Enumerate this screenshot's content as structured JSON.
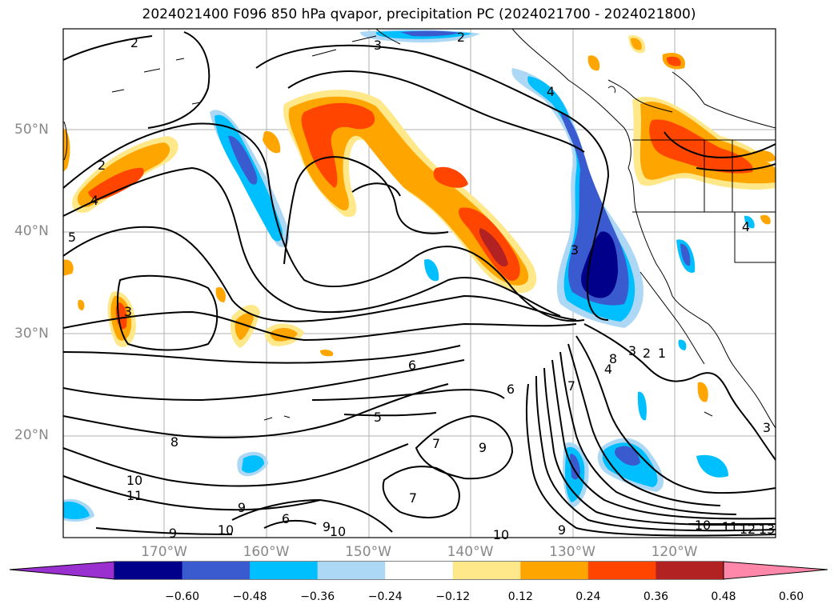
{
  "title": "2024021400 F096 850 hPa qvapor, precipitation PC (2024021700 - 2024021800)",
  "lat_labels": [
    {
      "text": "50°N",
      "lat": 50
    },
    {
      "text": "40°N",
      "lat": 40
    },
    {
      "text": "30°N",
      "lat": 30
    },
    {
      "text": "20°N",
      "lat": 20
    }
  ],
  "lon_labels": [
    {
      "text": "170°W",
      "lon": -170
    },
    {
      "text": "160°W",
      "lon": -160
    },
    {
      "text": "150°W",
      "lon": -150
    },
    {
      "text": "140°W",
      "lon": -140
    },
    {
      "text": "130°W",
      "lon": -130
    },
    {
      "text": "120°W",
      "lon": -120
    }
  ],
  "colorbar": {
    "colors": [
      "#9b30d0",
      "#00008b",
      "#3a5bd0",
      "#00bfff",
      "#add8f5",
      "#ffffff",
      "#ffe88a",
      "#ffa500",
      "#ff4500",
      "#b22222",
      "#ff88aa"
    ],
    "ticks": [
      "−0.60",
      "−0.48",
      "−0.36",
      "−0.24",
      "−0.12",
      "0.12",
      "0.24",
      "0.36",
      "0.48",
      "0.60"
    ]
  },
  "contour_labels": [
    "2",
    "3",
    "2",
    "4",
    "2",
    "4",
    "5",
    "3",
    "3",
    "6",
    "5",
    "8",
    "6",
    "7",
    "1",
    "2",
    "3",
    "4",
    "8",
    "7",
    "9",
    "10",
    "11",
    "9",
    "7",
    "6",
    "10",
    "9",
    "10",
    "10",
    "9",
    "10",
    "11",
    "12",
    "13",
    "3",
    "4",
    "9"
  ]
}
